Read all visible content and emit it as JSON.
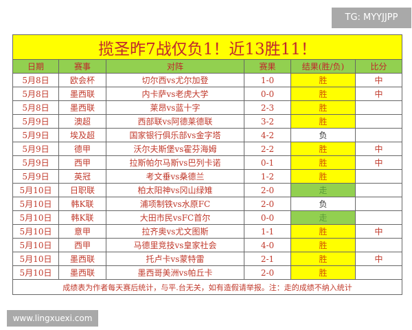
{
  "watermark_top": "TG: MYYJJPP",
  "watermark_bottom": "www.lingxuexi.com",
  "title": "揽圣昨7战仅负1！近13胜11！",
  "headers": [
    "日期",
    "赛事",
    "对阵",
    "赛果",
    "结果(胜/负)",
    "比分"
  ],
  "rows": [
    {
      "date": "5月8日",
      "league": "欧会杯",
      "match": "切尔西vs尤尔加登",
      "score": "1-0",
      "result": "胜",
      "odds": "中"
    },
    {
      "date": "5月8日",
      "league": "墨西联",
      "match": "内卡萨vs老虎大学",
      "score": "0-0",
      "result": "胜",
      "odds": "中"
    },
    {
      "date": "5月8日",
      "league": "墨西联",
      "match": "莱昂vs蓝十字",
      "score": "2-3",
      "result": "胜",
      "odds": ""
    },
    {
      "date": "5月9日",
      "league": "澳超",
      "match": "西部联vs阿德莱德联",
      "score": "3-2",
      "result": "胜",
      "odds": ""
    },
    {
      "date": "5月9日",
      "league": "埃及超",
      "match": "国家银行俱乐部vs金字塔",
      "score": "4-2",
      "result": "负",
      "odds": ""
    },
    {
      "date": "5月9日",
      "league": "德甲",
      "match": "沃尔夫斯堡vs霍芬海姆",
      "score": "2-2",
      "result": "胜",
      "odds": "中"
    },
    {
      "date": "5月9日",
      "league": "西甲",
      "match": "拉斯帕尔马斯vs巴列卡诺",
      "score": "0-1",
      "result": "胜",
      "odds": "中"
    },
    {
      "date": "5月9日",
      "league": "英冠",
      "match": "考文垂vs桑德兰",
      "score": "1-2",
      "result": "胜",
      "odds": ""
    },
    {
      "date": "5月10日",
      "league": "日职联",
      "match": "柏太阳神vs冈山绿雉",
      "score": "2-0",
      "result": "走",
      "odds": ""
    },
    {
      "date": "5月10日",
      "league": "韩K联",
      "match": "浦项制铁vs水原FC",
      "score": "2-0",
      "result": "负",
      "odds": ""
    },
    {
      "date": "5月10日",
      "league": "韩K联",
      "match": "大田市民vsFC首尔",
      "score": "0-0",
      "result": "走",
      "odds": ""
    },
    {
      "date": "5月10日",
      "league": "意甲",
      "match": "拉齐奥vs尤文图斯",
      "score": "1-1",
      "result": "胜",
      "odds": "中"
    },
    {
      "date": "5月10日",
      "league": "西甲",
      "match": "马德里竞技vs皇家社会",
      "score": "4-0",
      "result": "胜",
      "odds": ""
    },
    {
      "date": "5月10日",
      "league": "墨西联",
      "match": "托卢卡vs蒙特雷",
      "score": "2-1",
      "result": "胜",
      "odds": "中"
    },
    {
      "date": "5月10日",
      "league": "墨西联",
      "match": "墨西哥美洲vs帕丘卡",
      "score": "2-0",
      "result": "胜",
      "odds": ""
    }
  ],
  "footer": "成绩表为作者每天赛后统计，与平.台无关，如有造假请举报。注：走的成绩不纳入统计",
  "colors": {
    "win": "#ffff00",
    "push": "#92d050",
    "header": "#92d050",
    "title": "#ffff00"
  }
}
